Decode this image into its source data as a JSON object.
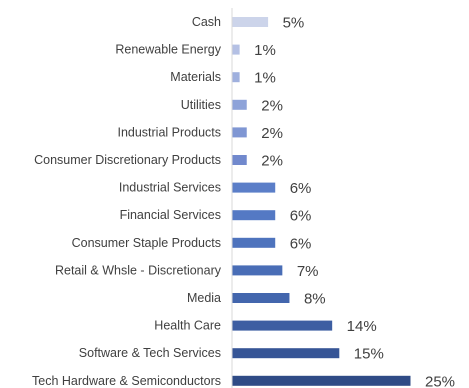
{
  "chart_data": {
    "type": "bar",
    "orientation": "horizontal",
    "categories": [
      "Cash",
      "Renewable Energy",
      "Materials",
      "Utilities",
      "Industrial Products",
      "Consumer Discretionary Products",
      "Industrial Services",
      "Financial Services",
      "Consumer Staple Products",
      "Retail & Whsle - Discretionary",
      "Media",
      "Health Care",
      "Software & Tech Services",
      "Tech Hardware & Semiconductors"
    ],
    "values": [
      5,
      1,
      1,
      2,
      2,
      2,
      6,
      6,
      6,
      7,
      8,
      14,
      15,
      25
    ],
    "value_labels": [
      "5%",
      "1%",
      "1%",
      "2%",
      "2%",
      "2%",
      "6%",
      "6%",
      "6%",
      "7%",
      "8%",
      "14%",
      "15%",
      "25%"
    ],
    "colors": [
      "#ccd4ea",
      "#b4c0e4",
      "#9fb0de",
      "#8ea3d9",
      "#7f96d3",
      "#7189cd",
      "#5b7ec8",
      "#5479c4",
      "#4e73bd",
      "#496db6",
      "#4366ad",
      "#3d5ea2",
      "#365596",
      "#2f4b86"
    ],
    "axis_color": "#d9d9d9",
    "xlim": [
      0,
      25
    ],
    "title": "",
    "xlabel": "",
    "ylabel": "",
    "legend": "none",
    "grid": false
  }
}
